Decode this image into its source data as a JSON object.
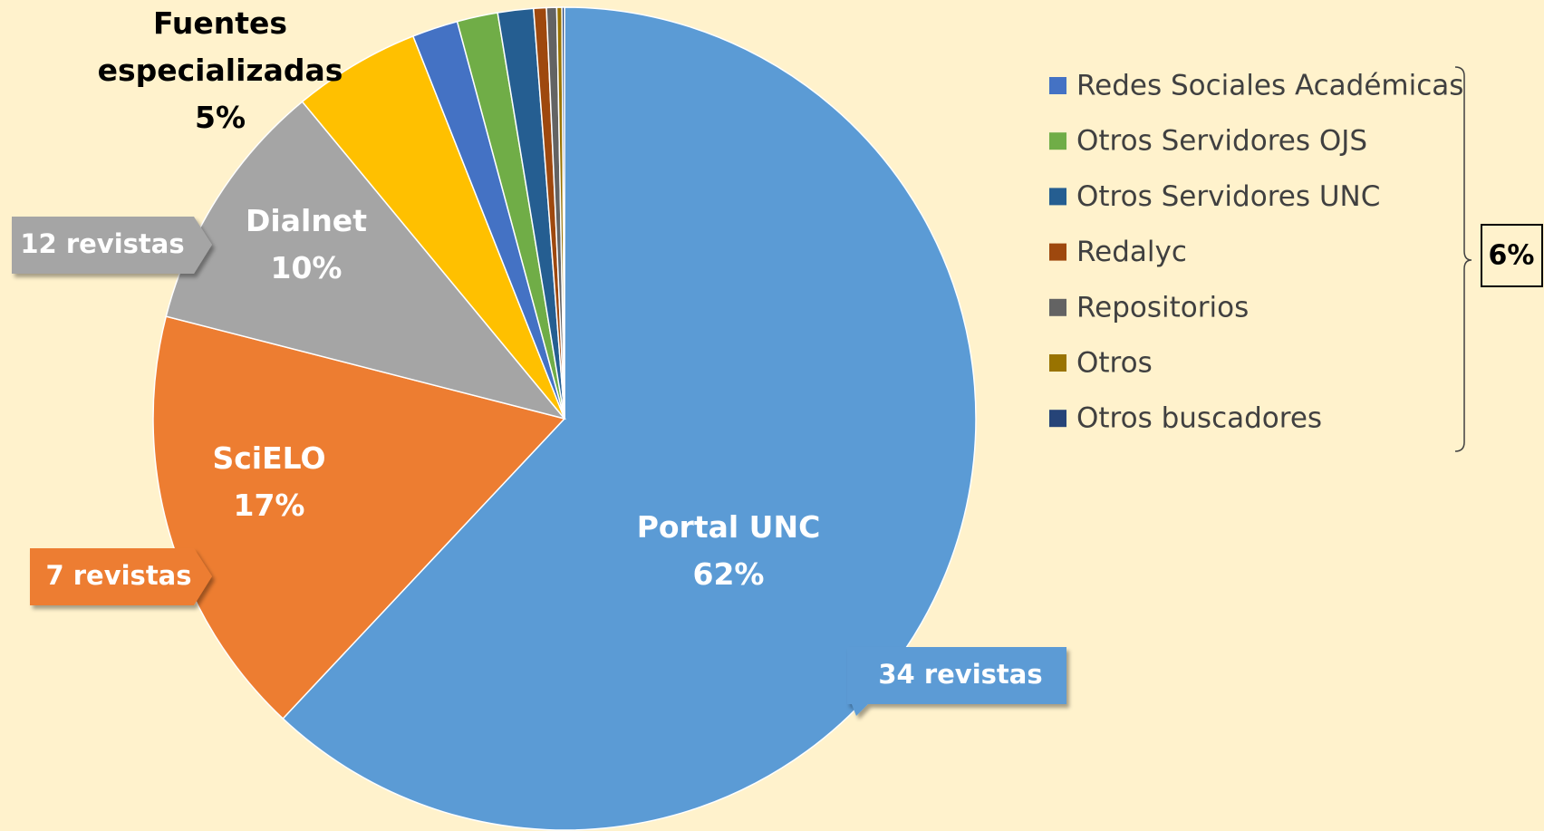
{
  "chart_data": {
    "type": "pie",
    "categories": [
      "Portal UNC",
      "SciELO",
      "Dialnet",
      "Fuentes especializadas",
      "Redes Sociales Académicas",
      "Otros Servidores OJS",
      "Otros Servidores UNC",
      "Redalyc",
      "Repositorios",
      "Otros",
      "Otros buscadores"
    ],
    "values": [
      62,
      17,
      10,
      5,
      1.8,
      1.6,
      1.4,
      0.5,
      0.4,
      0.2,
      0.1
    ],
    "value_labels": [
      "62%",
      "17%",
      "10%",
      "5%",
      null,
      null,
      null,
      null,
      null,
      null,
      null
    ],
    "colors": [
      "#5b9bd5",
      "#ed7d31",
      "#a5a5a5",
      "#ffc000",
      "#4472c4",
      "#70ad47",
      "#255e91",
      "#9e480e",
      "#636363",
      "#997300",
      "#264478"
    ],
    "annotations": [
      "34 revistas",
      "7 revistas",
      "12 revistas"
    ],
    "group_label": "6%"
  }
}
